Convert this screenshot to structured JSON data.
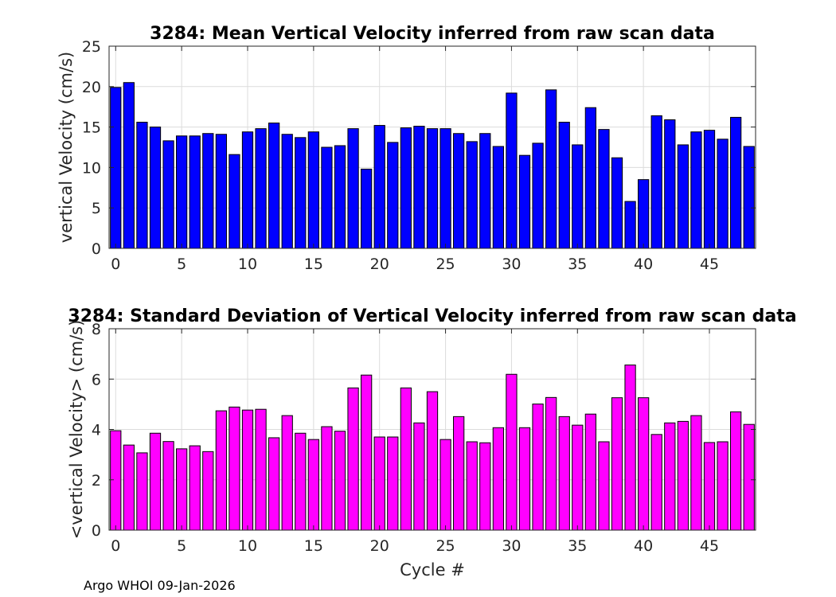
{
  "chart_data": [
    {
      "type": "bar",
      "title": "3284: Mean Vertical Velocity inferred from raw scan data",
      "xlabel": "",
      "ylabel": "vertical Velocity (cm/s)",
      "ylim": [
        0,
        25
      ],
      "yticks": [
        0,
        5,
        10,
        15,
        20,
        25
      ],
      "xticks": [
        0,
        5,
        10,
        15,
        20,
        25,
        30,
        35,
        40,
        45
      ],
      "xlim": [
        -0.5,
        48.5
      ],
      "grid": true,
      "color": "#0000ff",
      "x": [
        0,
        1,
        2,
        3,
        4,
        5,
        6,
        7,
        8,
        9,
        10,
        11,
        12,
        13,
        14,
        15,
        16,
        17,
        18,
        19,
        20,
        21,
        22,
        23,
        24,
        25,
        26,
        27,
        28,
        29,
        30,
        31,
        32,
        33,
        34,
        35,
        36,
        37,
        38,
        39,
        40,
        41,
        42,
        43,
        44,
        45,
        46,
        47,
        48
      ],
      "values": [
        19.9,
        20.5,
        15.6,
        15.0,
        13.3,
        13.9,
        13.9,
        14.2,
        14.1,
        11.6,
        14.4,
        14.8,
        15.5,
        14.1,
        13.7,
        14.4,
        12.5,
        12.7,
        14.8,
        9.8,
        15.2,
        13.1,
        14.9,
        15.1,
        14.8,
        14.8,
        14.2,
        13.2,
        14.2,
        12.6,
        19.2,
        11.5,
        13.0,
        19.6,
        15.6,
        12.8,
        17.4,
        14.7,
        11.2,
        5.8,
        8.5,
        16.4,
        15.9,
        12.8,
        14.4,
        14.6,
        13.5,
        16.2,
        12.6
      ]
    },
    {
      "type": "bar",
      "title": "3284: Standard Deviation of Vertical Velocity inferred from raw scan data",
      "xlabel": "Cycle #",
      "ylabel": "<vertical Velocity> (cm/s)",
      "ylim": [
        0,
        8
      ],
      "yticks": [
        0,
        2,
        4,
        6,
        8
      ],
      "xticks": [
        0,
        5,
        10,
        15,
        20,
        25,
        30,
        35,
        40,
        45
      ],
      "xlim": [
        -0.5,
        48.5
      ],
      "grid": true,
      "color": "#ff00ff",
      "x": [
        0,
        1,
        2,
        3,
        4,
        5,
        6,
        7,
        8,
        9,
        10,
        11,
        12,
        13,
        14,
        15,
        16,
        17,
        18,
        19,
        20,
        21,
        22,
        23,
        24,
        25,
        26,
        27,
        28,
        29,
        30,
        31,
        32,
        33,
        34,
        35,
        36,
        37,
        38,
        39,
        40,
        41,
        42,
        43,
        44,
        45,
        46,
        47,
        48
      ],
      "values": [
        3.95,
        3.38,
        3.07,
        3.85,
        3.52,
        3.23,
        3.35,
        3.12,
        4.74,
        4.89,
        4.77,
        4.8,
        3.67,
        4.55,
        3.85,
        3.6,
        4.11,
        3.93,
        5.65,
        6.16,
        3.7,
        3.7,
        5.65,
        4.26,
        5.5,
        3.6,
        4.51,
        3.51,
        3.47,
        4.07,
        6.19,
        4.07,
        5.01,
        5.27,
        4.51,
        4.17,
        4.61,
        3.51,
        5.26,
        6.56,
        5.26,
        3.8,
        4.26,
        4.32,
        4.55,
        3.48,
        3.51,
        4.7,
        4.2
      ]
    }
  ],
  "footer": "Argo WHOI 09-Jan-2026"
}
